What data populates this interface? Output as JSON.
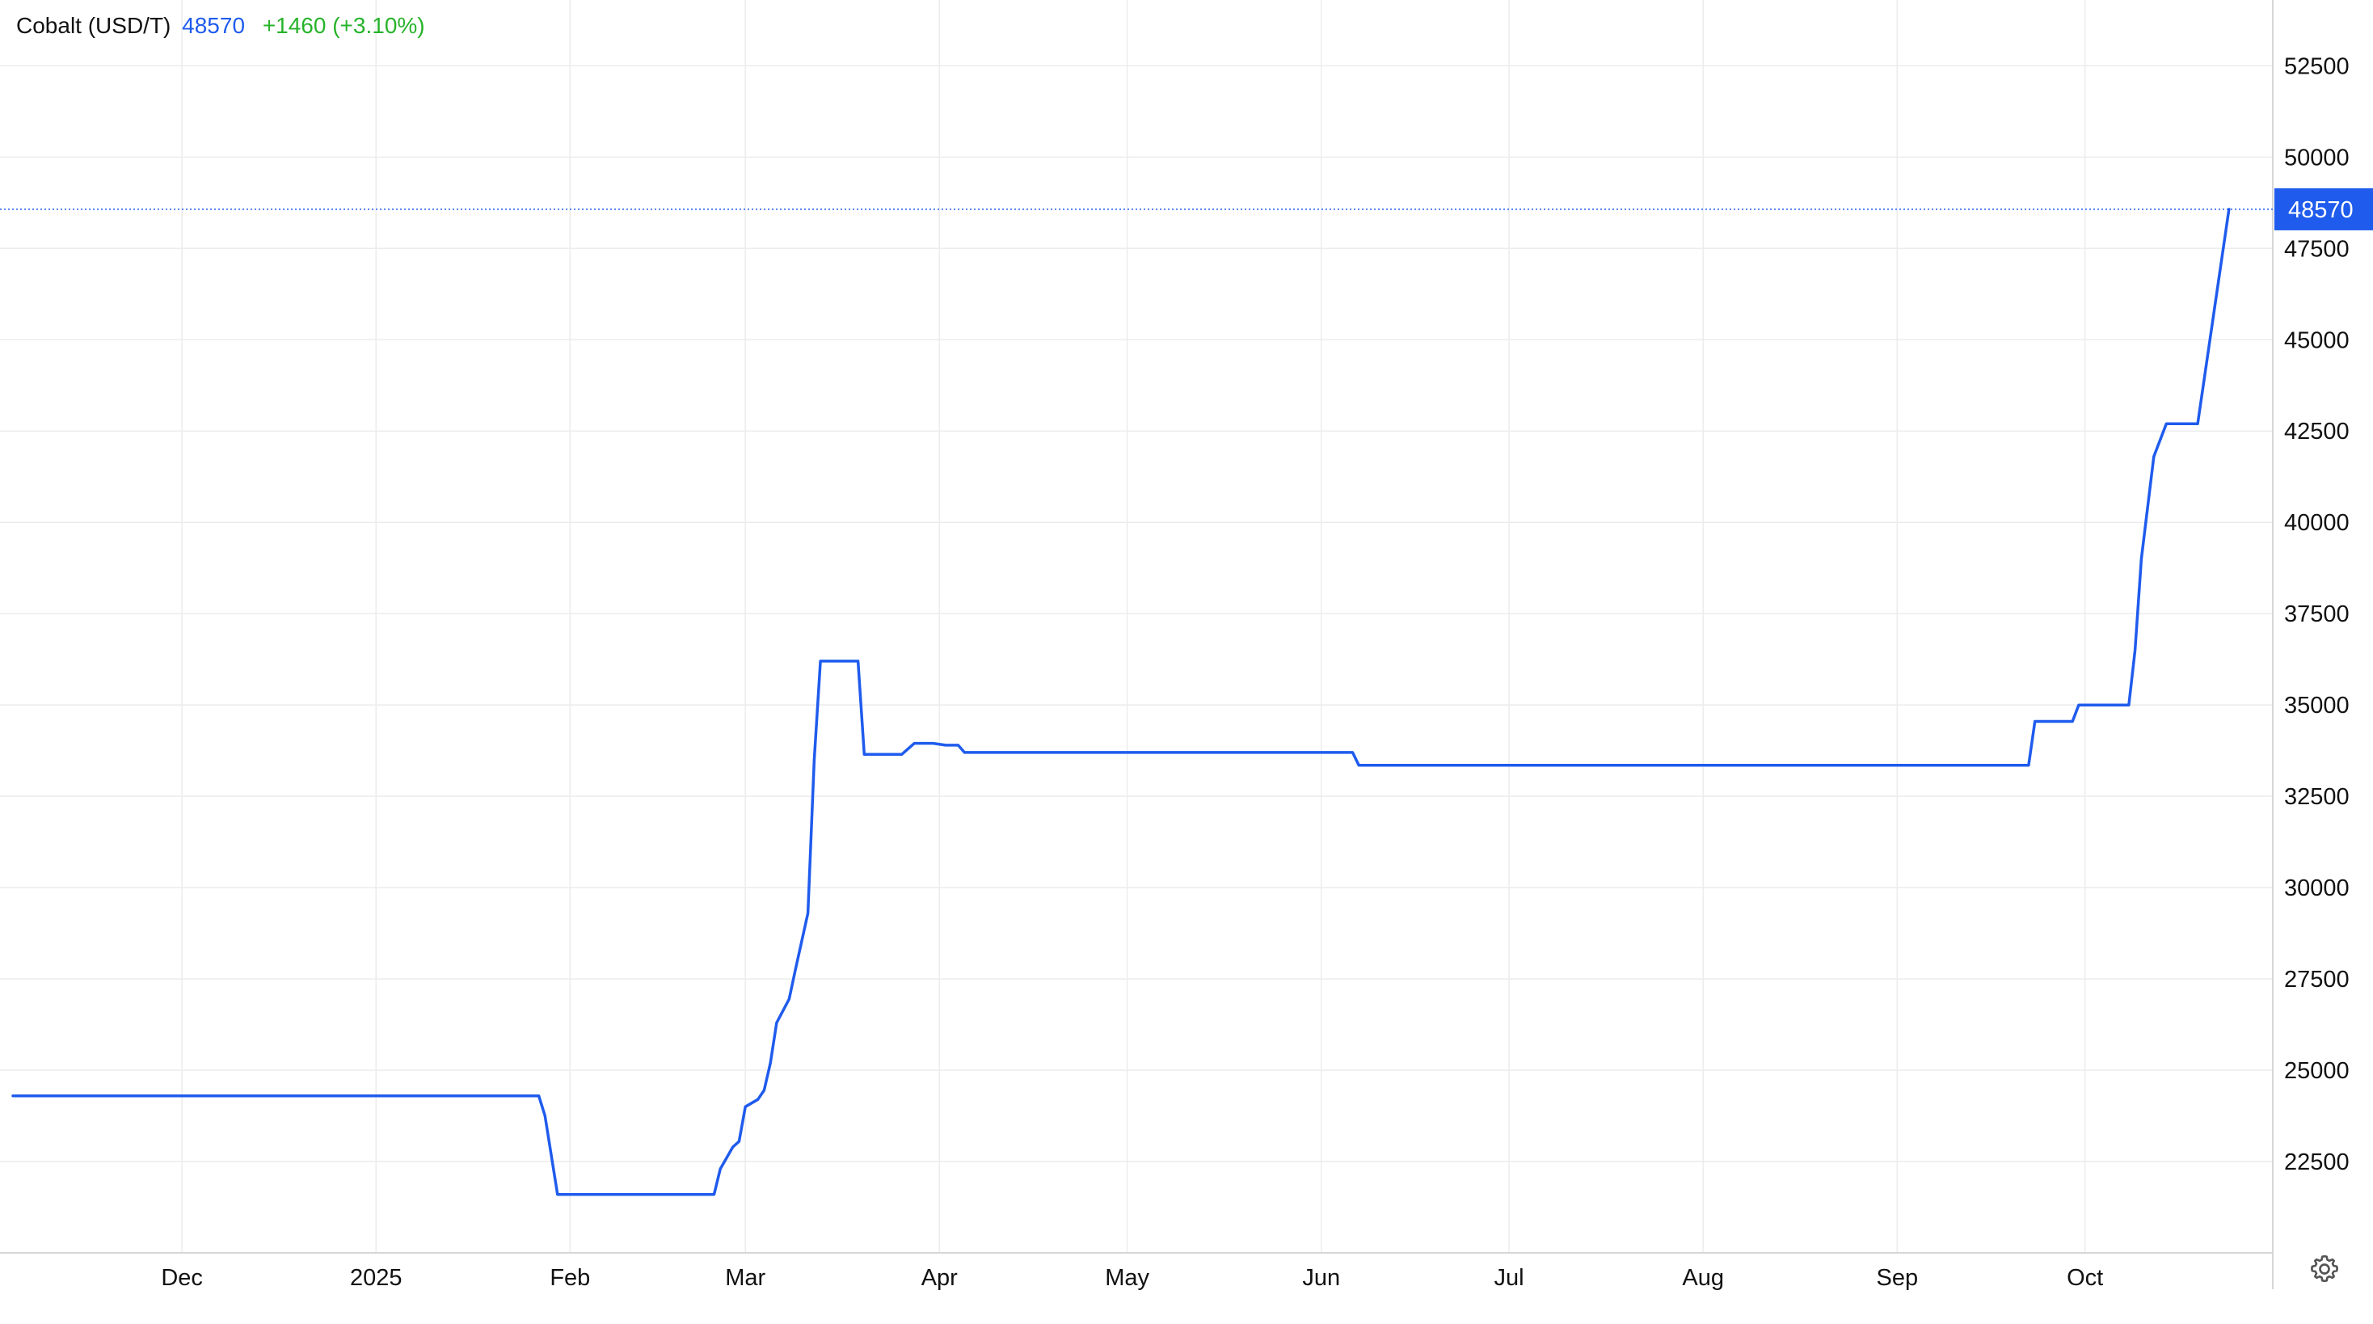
{
  "legend": {
    "name": "Cobalt (USD/T)",
    "price": "48570",
    "change": "+1460 (+3.10%)"
  },
  "colors": {
    "series": "#1f5bed",
    "price_tag": "#1f5bed",
    "change_positive": "#27b32a",
    "grid": "#ececec",
    "axis_text": "#111111",
    "settings_icon": "#555555"
  },
  "icons": {
    "settings": "gear-icon"
  },
  "chart_data": {
    "type": "line",
    "series": [
      {
        "name": "Cobalt (USD/T)",
        "points": [
          [
            "2024-11-04",
            24300
          ],
          [
            "2025-01-27",
            24300
          ],
          [
            "2025-01-28",
            23750
          ],
          [
            "2025-01-30",
            21600
          ],
          [
            "2025-02-24",
            21600
          ],
          [
            "2025-02-25",
            22300
          ],
          [
            "2025-02-27",
            22900
          ],
          [
            "2025-02-28",
            23050
          ],
          [
            "2025-03-01",
            24000
          ],
          [
            "2025-03-03",
            24200
          ],
          [
            "2025-03-04",
            24450
          ],
          [
            "2025-03-05",
            25200
          ],
          [
            "2025-03-06",
            26300
          ],
          [
            "2025-03-08",
            26950
          ],
          [
            "2025-03-09",
            27750
          ],
          [
            "2025-03-11",
            29300
          ],
          [
            "2025-03-12",
            33500
          ],
          [
            "2025-03-13",
            36200
          ],
          [
            "2025-03-19",
            36200
          ],
          [
            "2025-03-20",
            33650
          ],
          [
            "2025-03-26",
            33650
          ],
          [
            "2025-03-28",
            33950
          ],
          [
            "2025-03-31",
            33950
          ],
          [
            "2025-04-02",
            33900
          ],
          [
            "2025-04-04",
            33900
          ],
          [
            "2025-04-05",
            33700
          ],
          [
            "2025-06-06",
            33700
          ],
          [
            "2025-06-07",
            33350
          ],
          [
            "2025-09-22",
            33350
          ],
          [
            "2025-09-23",
            34550
          ],
          [
            "2025-09-29",
            34550
          ],
          [
            "2025-09-30",
            35000
          ],
          [
            "2025-10-08",
            35000
          ],
          [
            "2025-10-09",
            36500
          ],
          [
            "2025-10-10",
            39000
          ],
          [
            "2025-10-12",
            41800
          ],
          [
            "2025-10-14",
            42700
          ],
          [
            "2025-10-19",
            42700
          ],
          [
            "2025-10-24",
            48570
          ]
        ]
      }
    ],
    "last_value": 48570,
    "x_range": [
      "2024-11-04",
      "2025-10-31"
    ],
    "y_range": [
      20000,
      54300
    ],
    "y_ticks": [
      22500,
      25000,
      27500,
      30000,
      32500,
      35000,
      37500,
      40000,
      42500,
      45000,
      47500,
      50000,
      52500
    ],
    "x_ticks": [
      {
        "date": "2024-12-01",
        "label": "Dec"
      },
      {
        "date": "2025-01-01",
        "label": "2025"
      },
      {
        "date": "2025-02-01",
        "label": "Feb"
      },
      {
        "date": "2025-03-01",
        "label": "Mar"
      },
      {
        "date": "2025-04-01",
        "label": "Apr"
      },
      {
        "date": "2025-05-01",
        "label": "May"
      },
      {
        "date": "2025-06-01",
        "label": "Jun"
      },
      {
        "date": "2025-07-01",
        "label": "Jul"
      },
      {
        "date": "2025-08-01",
        "label": "Aug"
      },
      {
        "date": "2025-09-01",
        "label": "Sep"
      },
      {
        "date": "2025-10-01",
        "label": "Oct"
      }
    ],
    "grid": true,
    "y_axis_side": "right",
    "legend_position": "top-left"
  }
}
